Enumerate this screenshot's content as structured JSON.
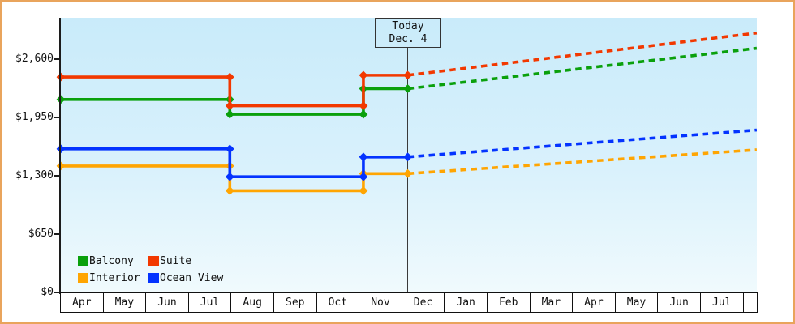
{
  "colors": {
    "frame_border": "#e9a45c",
    "plot_gradient_top": "#c9ebfa",
    "plot_gradient_bottom": "#f0fafd",
    "axis": "#1c1c1c"
  },
  "chart_data": {
    "type": "line",
    "subtype": "step-history-with-dashed-forecast",
    "annotation": {
      "line1": "Today",
      "line2": "Dec. 4"
    },
    "x_axis": {
      "months": [
        "Apr",
        "May",
        "Jun",
        "Jul",
        "Aug",
        "Sep",
        "Oct",
        "Nov",
        "Dec",
        "Jan",
        "Feb",
        "Mar",
        "Apr",
        "May",
        "Jun",
        "Jul"
      ]
    },
    "y_axis": {
      "ticks": [
        {
          "label": "$0",
          "value": 0
        },
        {
          "label": "$650",
          "value": 650
        },
        {
          "label": "$1,300",
          "value": 1300
        },
        {
          "label": "$1,950",
          "value": 1950
        },
        {
          "label": "$2,600",
          "value": 2600
        }
      ],
      "ylim": [
        0,
        3060
      ],
      "grid": false
    },
    "today_index": 8.13,
    "end_index": 16.31,
    "series": [
      {
        "name": "Interior",
        "color": "#ffa502",
        "history": [
          {
            "from": 0,
            "to": 3.96,
            "value": 1410
          },
          {
            "from": 3.96,
            "to": 7.09,
            "value": 1135
          },
          {
            "from": 7.09,
            "to": 8.13,
            "value": 1325
          }
        ],
        "forecast": {
          "to": 16.31,
          "value": 1590
        }
      },
      {
        "name": "Ocean View",
        "color": "#0433ff",
        "history": [
          {
            "from": 0,
            "to": 3.96,
            "value": 1600
          },
          {
            "from": 3.96,
            "to": 7.09,
            "value": 1290
          },
          {
            "from": 7.09,
            "to": 8.13,
            "value": 1510
          }
        ],
        "forecast": {
          "to": 16.31,
          "value": 1810
        }
      },
      {
        "name": "Balcony",
        "color": "#0aa00c",
        "history": [
          {
            "from": 0,
            "to": 3.96,
            "value": 2150
          },
          {
            "from": 3.96,
            "to": 7.09,
            "value": 1985
          },
          {
            "from": 7.09,
            "to": 8.13,
            "value": 2270
          }
        ],
        "forecast": {
          "to": 16.31,
          "value": 2720
        }
      },
      {
        "name": "Suite",
        "color": "#f23800",
        "history": [
          {
            "from": 0,
            "to": 3.96,
            "value": 2400
          },
          {
            "from": 3.96,
            "to": 7.09,
            "value": 2080
          },
          {
            "from": 7.09,
            "to": 8.13,
            "value": 2420
          }
        ],
        "forecast": {
          "to": 16.31,
          "value": 2890
        }
      }
    ],
    "legend": {
      "position": "bottom-left",
      "rows": [
        [
          "Balcony",
          "Suite"
        ],
        [
          "Interior",
          "Ocean View"
        ]
      ]
    }
  }
}
